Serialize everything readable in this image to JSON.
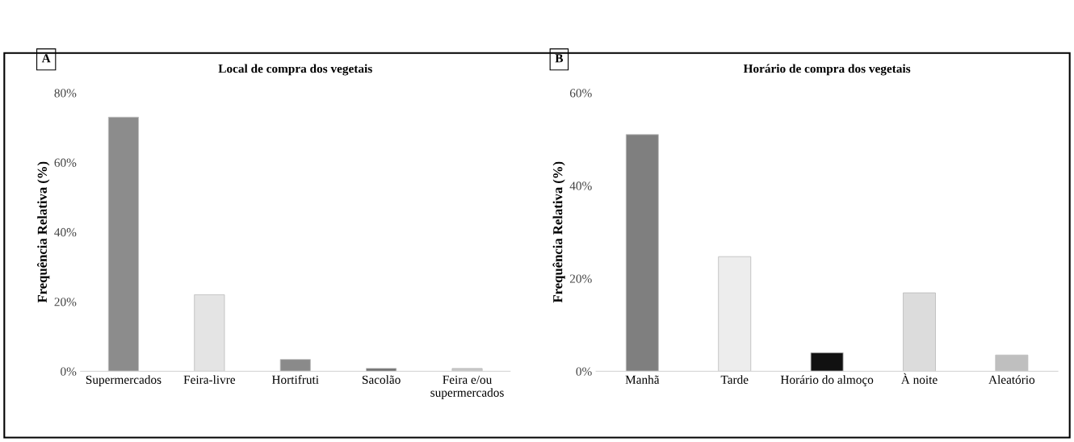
{
  "chart_data": [
    {
      "type": "bar",
      "title": "Local de compra dos vegetais",
      "ylabel": "Frequência Relativa (%)",
      "annotations": [
        "A"
      ],
      "categories": [
        "Supermercados",
        "Feira-livre",
        "Hortifruti",
        "Sacolão",
        "Feira e/ou\nsupermercados"
      ],
      "values": [
        73,
        22,
        3.4,
        0.8,
        0.8
      ],
      "colors": [
        "#8c8c8c",
        "#e4e4e4",
        "#8a8a8a",
        "#6e6e6e",
        "#c8c8c8"
      ],
      "ylim": [
        0,
        80
      ],
      "yticks": [
        {
          "value": 0,
          "label": "0%"
        },
        {
          "value": 20,
          "label": "20%"
        },
        {
          "value": 40,
          "label": "40%"
        },
        {
          "value": 60,
          "label": "60%"
        },
        {
          "value": 80,
          "label": "80%"
        }
      ],
      "grid": false
    },
    {
      "type": "bar",
      "title": "Horário de compra dos vegetais",
      "ylabel": "Frequência Relativa (%)",
      "annotations": [
        "B"
      ],
      "categories": [
        "Manhã",
        "Tarde",
        "Horário do almoço",
        "À noite",
        "Aleatório"
      ],
      "values": [
        51,
        24.7,
        4.0,
        16.9,
        3.5
      ],
      "colors": [
        "#7f7f7f",
        "#ededed",
        "#111111",
        "#dcdcdc",
        "#bfbfbf"
      ],
      "ylim": [
        0,
        60
      ],
      "yticks": [
        {
          "value": 0,
          "label": "0%"
        },
        {
          "value": 20,
          "label": "20%"
        },
        {
          "value": 40,
          "label": "40%"
        },
        {
          "value": 60,
          "label": "60%"
        }
      ],
      "grid": false
    }
  ]
}
